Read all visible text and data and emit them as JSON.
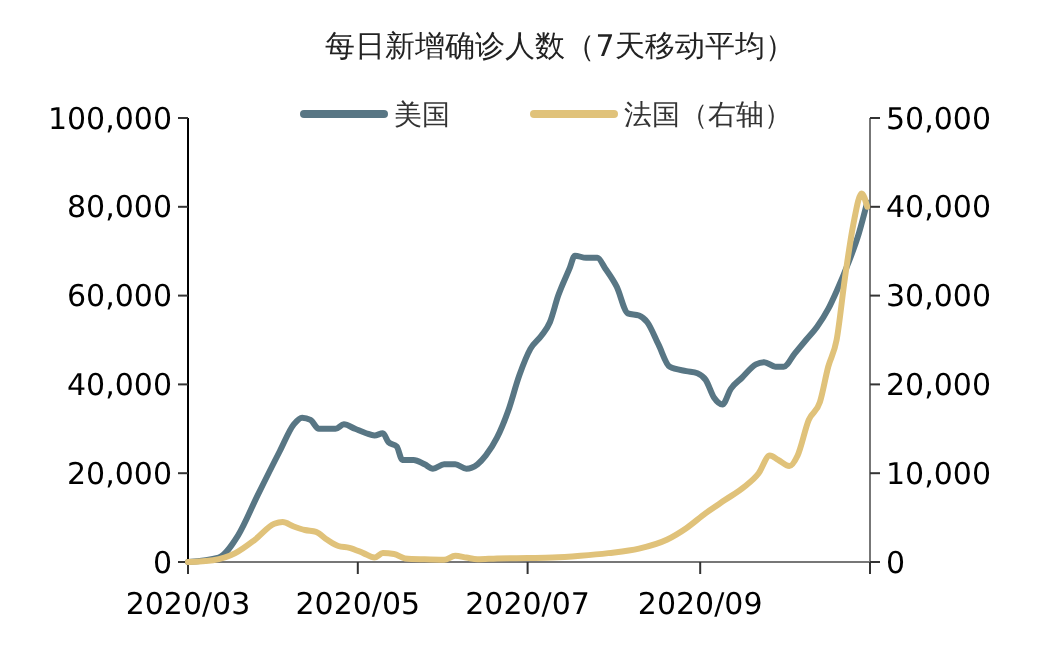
{
  "chart_data": {
    "type": "line",
    "title": "每日新增确诊人数（7天移动平均）",
    "legend": "top",
    "grid": false,
    "xlim": [
      "2020-03-01",
      "2020-11-01"
    ],
    "xticks": [
      {
        "value": "2020-03-01",
        "label": "2020/03"
      },
      {
        "value": "2020-05-01",
        "label": "2020/05"
      },
      {
        "value": "2020-07-01",
        "label": "2020/07"
      },
      {
        "value": "2020-09-01",
        "label": "2020/09"
      },
      {
        "value": "2020-11-01",
        "label": null
      }
    ],
    "ylim": [
      0,
      100000
    ],
    "yticks": [
      {
        "value": 0,
        "label": "0"
      },
      {
        "value": 20000,
        "label": "20,000"
      },
      {
        "value": 40000,
        "label": "40,000"
      },
      {
        "value": 60000,
        "label": "60,000"
      },
      {
        "value": 80000,
        "label": "80,000"
      },
      {
        "value": 100000,
        "label": "100,000"
      }
    ],
    "y2lim": [
      0,
      50000
    ],
    "y2ticks": [
      {
        "value": 0,
        "label": "0"
      },
      {
        "value": 10000,
        "label": "10,000"
      },
      {
        "value": 20000,
        "label": "20,000"
      },
      {
        "value": 30000,
        "label": "30,000"
      },
      {
        "value": 40000,
        "label": "40,000"
      },
      {
        "value": 50000,
        "label": "50,000"
      }
    ],
    "series": [
      {
        "name": "美国",
        "color": "#587684",
        "x": [
          "2020-03-01",
          "2020-03-12",
          "2020-03-19",
          "2020-03-26",
          "2020-04-03",
          "2020-04-08",
          "2020-04-11",
          "2020-04-14",
          "2020-04-17",
          "2020-04-23",
          "2020-04-26",
          "2020-04-30",
          "2020-05-04",
          "2020-05-07",
          "2020-05-10",
          "2020-05-12",
          "2020-05-15",
          "2020-05-17",
          "2020-05-21",
          "2020-05-25",
          "2020-05-28",
          "2020-06-01",
          "2020-06-05",
          "2020-06-09",
          "2020-06-13",
          "2020-06-16",
          "2020-06-20",
          "2020-06-24",
          "2020-06-28",
          "2020-07-02",
          "2020-07-06",
          "2020-07-09",
          "2020-07-12",
          "2020-07-16",
          "2020-07-18",
          "2020-07-22",
          "2020-07-26",
          "2020-07-29",
          "2020-08-02",
          "2020-08-06",
          "2020-08-10",
          "2020-08-13",
          "2020-08-17",
          "2020-08-21",
          "2020-08-27",
          "2020-08-31",
          "2020-09-03",
          "2020-09-06",
          "2020-09-09",
          "2020-09-12",
          "2020-09-16",
          "2020-09-21",
          "2020-09-24",
          "2020-09-28",
          "2020-10-01",
          "2020-10-05",
          "2020-10-09",
          "2020-10-13",
          "2020-10-17",
          "2020-10-20",
          "2020-10-24",
          "2020-10-28",
          "2020-10-31"
        ],
        "values": [
          0,
          1000,
          6000,
          15000,
          25000,
          31000,
          32500,
          32000,
          30000,
          30000,
          31000,
          30000,
          29000,
          28500,
          29000,
          27000,
          26000,
          23000,
          23000,
          22000,
          21000,
          22000,
          22000,
          21000,
          22000,
          24000,
          28000,
          34000,
          42000,
          48000,
          51000,
          54000,
          60000,
          66000,
          69000,
          68500,
          68500,
          66000,
          62000,
          56000,
          55500,
          54000,
          49000,
          44000,
          43000,
          42500,
          41000,
          37000,
          35500,
          39000,
          41500,
          44500,
          45000,
          44000,
          44000,
          47000,
          50000,
          53000,
          57000,
          61000,
          67000,
          74000,
          81000
        ]
      },
      {
        "name": "法国（右轴）",
        "color": "#e0c27a",
        "axis": "y2",
        "x": [
          "2020-03-01",
          "2020-03-10",
          "2020-03-18",
          "2020-03-25",
          "2020-04-01",
          "2020-04-04",
          "2020-04-08",
          "2020-04-12",
          "2020-04-16",
          "2020-04-20",
          "2020-04-24",
          "2020-04-28",
          "2020-05-03",
          "2020-05-07",
          "2020-05-10",
          "2020-05-14",
          "2020-05-18",
          "2020-05-25",
          "2020-06-01",
          "2020-06-05",
          "2020-06-09",
          "2020-06-13",
          "2020-06-20",
          "2020-07-01",
          "2020-07-10",
          "2020-07-20",
          "2020-07-30",
          "2020-08-10",
          "2020-08-20",
          "2020-08-27",
          "2020-09-03",
          "2020-09-10",
          "2020-09-17",
          "2020-09-22",
          "2020-09-26",
          "2020-09-29",
          "2020-10-03",
          "2020-10-06",
          "2020-10-10",
          "2020-10-14",
          "2020-10-17",
          "2020-10-20",
          "2020-10-23",
          "2020-10-26",
          "2020-10-29",
          "2020-10-31"
        ],
        "values": [
          0,
          200,
          1000,
          2500,
          4300,
          4500,
          4000,
          3600,
          3400,
          2500,
          1800,
          1600,
          1000,
          500,
          1000,
          900,
          400,
          300,
          250,
          700,
          500,
          300,
          400,
          450,
          500,
          700,
          1000,
          1500,
          2500,
          3800,
          5500,
          7000,
          8500,
          10000,
          12000,
          11500,
          10800,
          12000,
          16000,
          18000,
          22000,
          25000,
          32000,
          38000,
          41500,
          40000
        ]
      }
    ]
  }
}
